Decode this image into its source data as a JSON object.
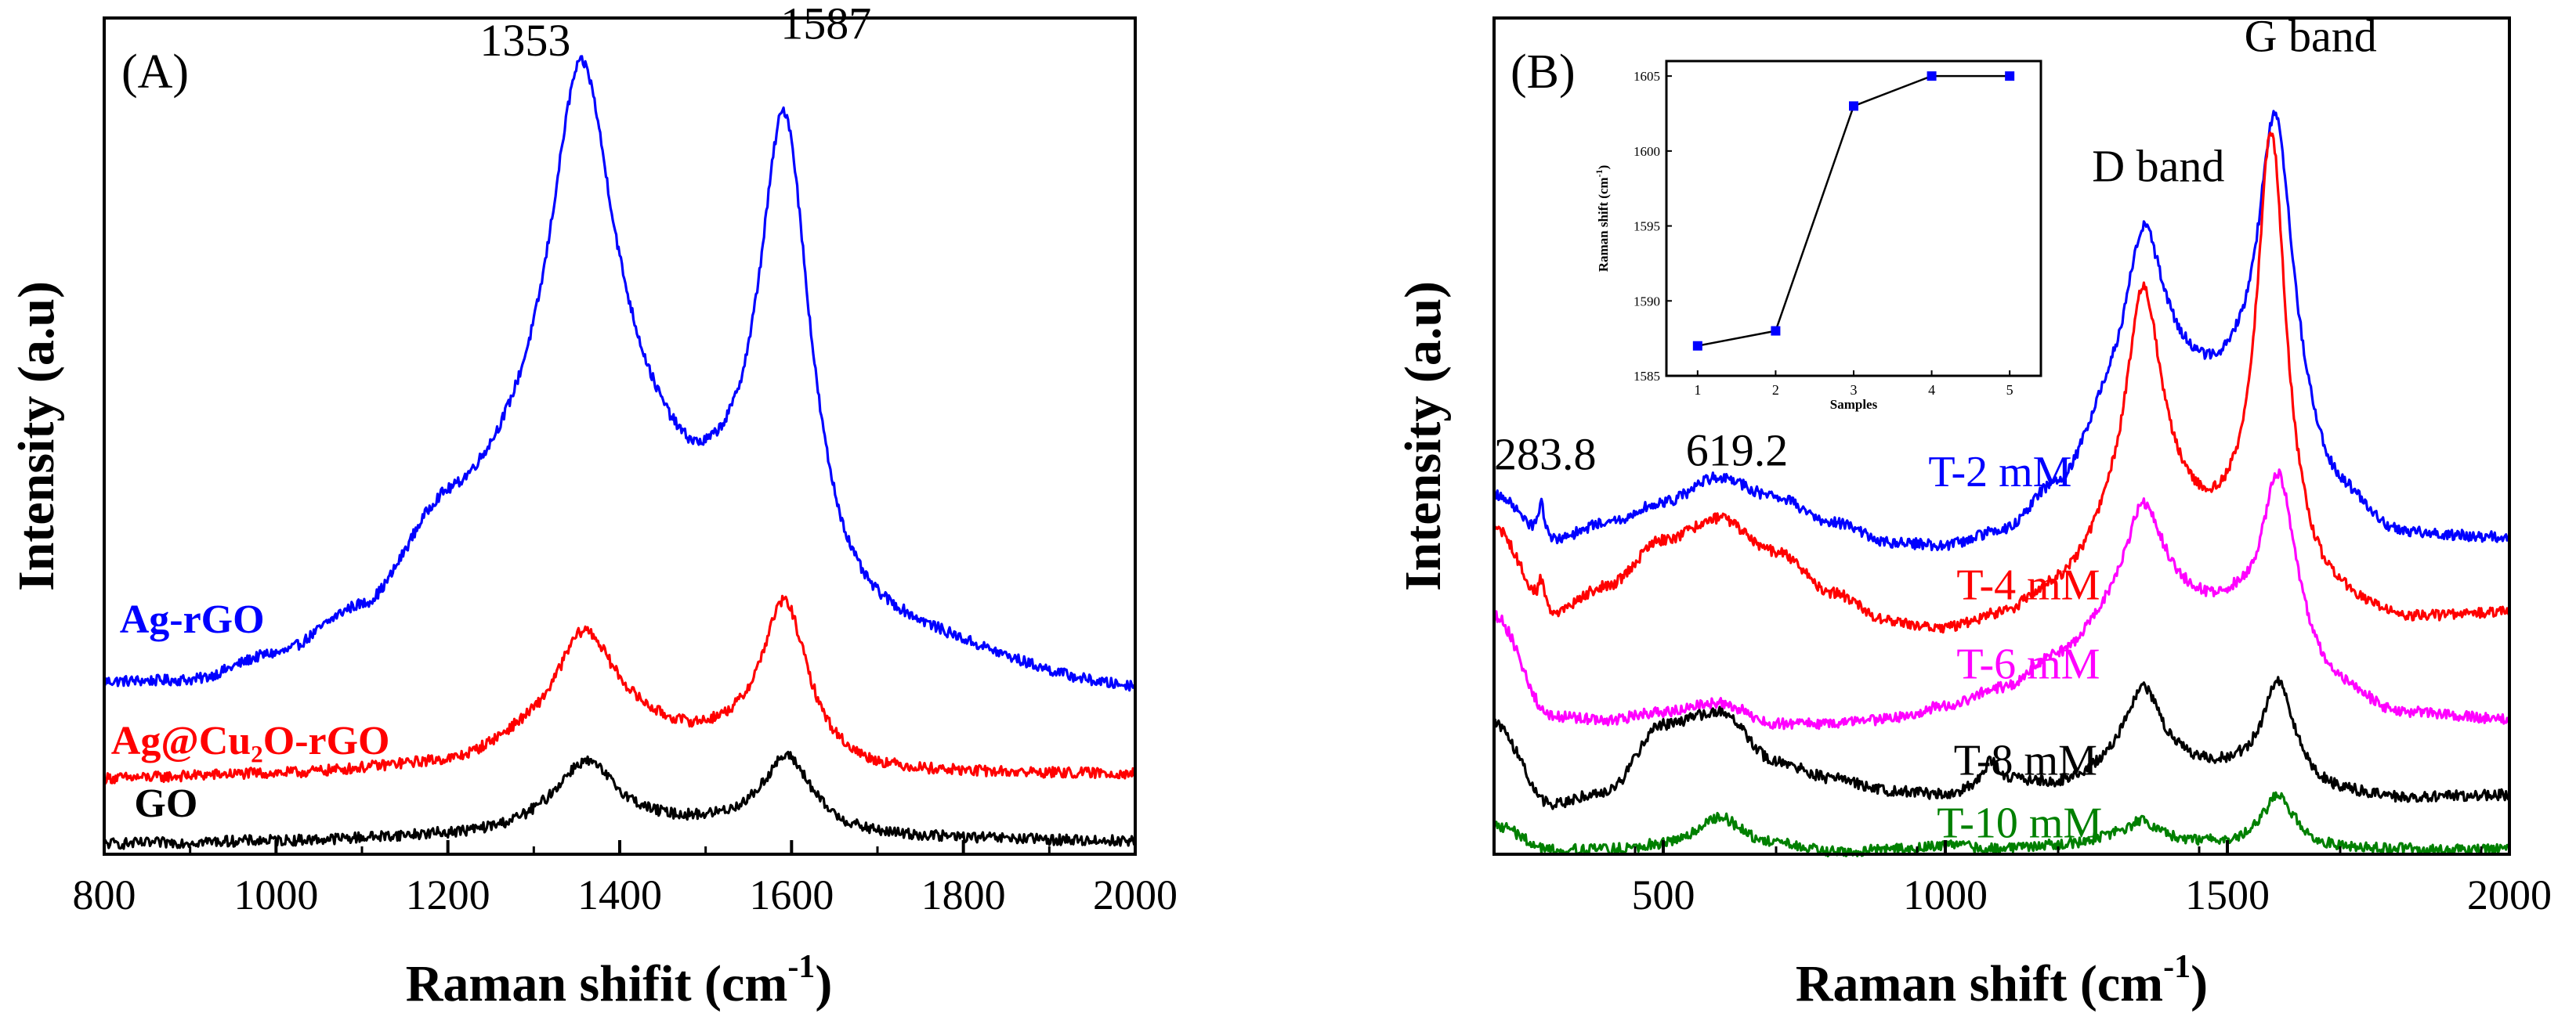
{
  "chart_data": [
    {
      "id": "A",
      "type": "line",
      "panel_label": "(A)",
      "xlabel": "Raman shifit (cm",
      "xlabel_sup": "-1",
      "xlabel_end": ")",
      "ylabel": "Intensity (a.u)",
      "xlim": [
        800,
        2000
      ],
      "ylim": [
        0,
        10
      ],
      "xticks": [
        800,
        1000,
        1200,
        1400,
        1600,
        1800,
        2000
      ],
      "yticks_visible": false,
      "peak_labels": [
        {
          "text": "1353",
          "x": 1290,
          "y": 9.55
        },
        {
          "text": "1587",
          "x": 1640,
          "y": 9.75
        }
      ],
      "series": [
        {
          "name": "Ag-rGO",
          "color": "#0000ff",
          "label_x": 818,
          "label_y": 2.65,
          "baseline_x": [
            800,
            900,
            1000,
            1100,
            1200,
            1300,
            1400,
            1500,
            1700,
            2000
          ],
          "baseline_y": [
            2.02,
            2.02,
            2.3,
            2.8,
            3.9,
            4.2,
            4.3,
            3.6,
            2.5,
            1.95
          ],
          "peaks": [
            {
              "center": 1355,
              "height": 5.05,
              "width": 46
            },
            {
              "center": 1592,
              "height": 5.55,
              "width": 36
            },
            {
              "center": 1468,
              "height": 0.2,
              "width": 60
            }
          ]
        },
        {
          "name": "Ag@Cu₂O-rGO",
          "color": "#ff0000",
          "label_x": 808,
          "label_y": 1.2,
          "baseline_x": [
            800,
            1000,
            1200,
            1300,
            1400,
            1500,
            1700,
            2000
          ],
          "baseline_y": [
            0.9,
            0.95,
            1.05,
            1.3,
            1.45,
            1.3,
            0.95,
            0.95
          ],
          "peaks": [
            {
              "center": 1358,
              "height": 1.25,
              "width": 42
            },
            {
              "center": 1592,
              "height": 1.85,
              "width": 33
            }
          ]
        },
        {
          "name": "GO",
          "color": "#000000",
          "label_x": 835,
          "label_y": 0.45,
          "baseline_x": [
            800,
            1000,
            1200,
            1400,
            1500,
            1700,
            2000
          ],
          "baseline_y": [
            0.12,
            0.15,
            0.2,
            0.3,
            0.3,
            0.18,
            0.15
          ],
          "peaks": [
            {
              "center": 1360,
              "height": 0.8,
              "width": 45
            },
            {
              "center": 1595,
              "height": 0.9,
              "width": 36
            }
          ]
        }
      ]
    },
    {
      "id": "B",
      "type": "line",
      "panel_label": "(B)",
      "xlabel": "Raman shift (cm",
      "xlabel_sup": "-1",
      "xlabel_end": ")",
      "ylabel": "Intensity (a.u)",
      "xlim": [
        200,
        2000
      ],
      "ylim": [
        0,
        10
      ],
      "xticks": [
        500,
        1000,
        1500,
        2000
      ],
      "yticks_visible": false,
      "peak_labels": [
        {
          "text": "283.8",
          "x": 200,
          "y": 4.6
        },
        {
          "text": "619.2",
          "x": 540,
          "y": 4.65
        },
        {
          "text": "D band",
          "x": 1260,
          "y": 8.05
        },
        {
          "text": "G band",
          "x": 1530,
          "y": 9.6
        }
      ],
      "series": [
        {
          "name": "T-2 mM",
          "color": "#0000ff",
          "label_x": 970,
          "label_y": 4.4,
          "baseline_x": [
            200,
            300,
            400,
            500,
            600,
            700,
            800,
            900,
            1000,
            1100,
            1200,
            1300,
            1400,
            1500,
            1600,
            1700,
            1800,
            2000
          ],
          "baseline_y": [
            4.3,
            3.75,
            3.95,
            4.2,
            4.5,
            4.25,
            3.95,
            3.7,
            3.65,
            3.8,
            4.3,
            5.1,
            5.5,
            5.3,
            4.7,
            4.1,
            3.75,
            3.75
          ],
          "peaks": [
            {
              "center": 1350,
              "height": 2.1,
              "width": 42
            },
            {
              "center": 1585,
              "height": 4.05,
              "width": 38
            },
            {
              "center": 283.8,
              "height": 0.4,
              "width": 6
            }
          ]
        },
        {
          "name": "T-4 mM",
          "color": "#ff0000",
          "label_x": 1020,
          "label_y": 3.05,
          "baseline_x": [
            200,
            300,
            400,
            500,
            600,
            700,
            800,
            900,
            1000,
            1100,
            1200,
            1300,
            1400,
            1500,
            1600,
            1700,
            1800,
            2000
          ],
          "baseline_y": [
            3.9,
            2.85,
            3.2,
            3.75,
            4.0,
            3.6,
            3.1,
            2.75,
            2.65,
            2.8,
            3.1,
            3.55,
            3.8,
            3.6,
            3.1,
            2.9,
            2.75,
            2.85
          ],
          "peaks": [
            {
              "center": 1350,
              "height": 3.0,
              "width": 40
            },
            {
              "center": 1578,
              "height": 5.4,
              "width": 32
            },
            {
              "center": 283.8,
              "height": 0.35,
              "width": 7
            }
          ]
        },
        {
          "name": "T-6 mM",
          "color": "#ff00ff",
          "label_x": 1020,
          "label_y": 2.1,
          "baseline_x": [
            200,
            300,
            400,
            500,
            600,
            700,
            800,
            900,
            1000,
            1100,
            1200,
            1300,
            1400,
            1500,
            1600,
            1700,
            1800,
            2000
          ],
          "baseline_y": [
            2.85,
            1.65,
            1.6,
            1.7,
            1.8,
            1.55,
            1.55,
            1.6,
            1.75,
            1.95,
            2.3,
            2.7,
            2.9,
            2.8,
            2.4,
            1.9,
            1.65,
            1.6
          ],
          "peaks": [
            {
              "center": 1350,
              "height": 1.35,
              "width": 42
            },
            {
              "center": 1590,
              "height": 2.1,
              "width": 36
            }
          ]
        },
        {
          "name": "T-8 mM",
          "color": "#000000",
          "label_x": 1015,
          "label_y": 0.95,
          "baseline_x": [
            200,
            300,
            400,
            500,
            600,
            700,
            800,
            900,
            1000,
            1100,
            1200,
            1300,
            1400,
            1500,
            1600,
            1700,
            1800,
            2000
          ],
          "baseline_y": [
            1.55,
            0.6,
            0.75,
            1.55,
            1.7,
            1.1,
            0.9,
            0.75,
            0.7,
            0.85,
            0.8,
            0.95,
            1.0,
            0.95,
            0.8,
            0.7,
            0.65,
            0.7
          ],
          "peaks": [
            {
              "center": 1350,
              "height": 1.0,
              "width": 40
            },
            {
              "center": 1590,
              "height": 1.25,
              "width": 34
            },
            {
              "center": 1080,
              "height": 0.25,
              "width": 15
            }
          ]
        },
        {
          "name": "T-10 mM",
          "color": "#008000",
          "label_x": 985,
          "label_y": 0.2,
          "baseline_x": [
            200,
            300,
            400,
            500,
            600,
            700,
            800,
            900,
            1000,
            1100,
            1200,
            1300,
            1400,
            1500,
            1600,
            1700,
            1800,
            2000
          ],
          "baseline_y": [
            0.35,
            0.05,
            0.05,
            0.1,
            0.2,
            0.1,
            0.02,
            0.05,
            0.1,
            0.05,
            0.1,
            0.15,
            0.12,
            0.1,
            0.1,
            0.05,
            0.05,
            0.05
          ],
          "peaks": [
            {
              "center": 1350,
              "height": 0.25,
              "width": 40
            },
            {
              "center": 1590,
              "height": 0.6,
              "width": 34
            },
            {
              "center": 600,
              "height": 0.25,
              "width": 40
            }
          ]
        }
      ],
      "inset": {
        "type": "line",
        "xlabel": "Samples",
        "ylabel": "Raman shift (cm",
        "ylabel_sup": "-1",
        "ylabel_end": ")",
        "x": [
          1,
          2,
          3,
          4,
          5
        ],
        "values": [
          1587,
          1588,
          1603,
          1605,
          1605
        ],
        "xlim": [
          0.6,
          5.4
        ],
        "ylim": [
          1585,
          1606
        ],
        "xticks": [
          "1",
          "2",
          "3",
          "4",
          "5"
        ],
        "yticks": [
          1585,
          1590,
          1595,
          1600,
          1605
        ],
        "marker_color": "#0000ff",
        "line_color": "#000000"
      }
    }
  ]
}
